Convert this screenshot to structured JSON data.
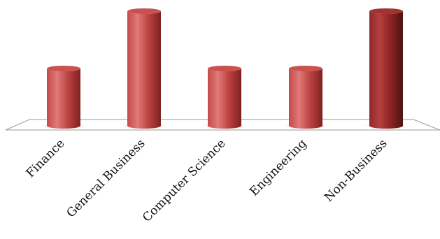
{
  "chart_data": {
    "type": "bar",
    "style": "3d-cylinder",
    "categories": [
      "Finance",
      "General Business",
      "Computer Science",
      "Engineering",
      "Non-Business"
    ],
    "values": [
      1,
      2,
      1,
      1,
      2
    ],
    "ylim": [
      0,
      2
    ],
    "grid": false,
    "legend": "none",
    "bar_color": "#c0392b"
  }
}
